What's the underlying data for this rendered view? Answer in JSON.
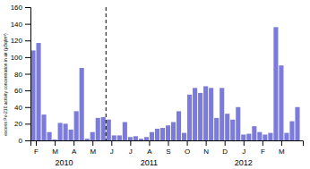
{
  "chart_data": {
    "type": "bar",
    "y_label": "excess Po-210 activity concentration in air (µBq/m³)",
    "color": "#7b7bdd",
    "x": [
      -0.5,
      0.5,
      1.5,
      2.5,
      3.5,
      4.5,
      5.5,
      6.5,
      7.5,
      8.5,
      9.5,
      10.5,
      11.5,
      12.5,
      13.5,
      14.5,
      15.5,
      16.5,
      17.5,
      18.5,
      19.5,
      20.5,
      21.5,
      22.5,
      23.5,
      24.5,
      25.5,
      26.5,
      27.5,
      28.5,
      29.5,
      30.5,
      31.5,
      32.5,
      33.5,
      34.5,
      35.5,
      36.5,
      37.5,
      38.5,
      39.5,
      40.5,
      41.5,
      42.5,
      43.5,
      44.5,
      45.5,
      46.5,
      47.5,
      48.5
    ],
    "values": [
      108,
      117,
      31,
      10,
      1,
      21,
      20,
      13,
      35,
      87,
      2,
      10,
      27,
      28,
      25,
      6,
      6,
      22,
      4,
      5,
      2,
      4,
      10,
      14,
      15,
      18,
      22,
      35,
      9,
      55,
      63,
      57,
      65,
      63,
      27,
      63,
      32,
      25,
      40,
      7,
      8,
      17,
      10,
      7,
      9,
      136,
      90,
      9,
      23,
      40
    ],
    "xlim": [
      -1,
      49.5
    ],
    "xticks": [
      {
        "value": 0,
        "label": "F"
      },
      {
        "value": 3.5,
        "label": "M"
      },
      {
        "value": 7,
        "label": "A"
      },
      {
        "value": 10.5,
        "label": "M"
      },
      {
        "value": 14,
        "label": "J"
      },
      {
        "value": 17.5,
        "label": "J"
      },
      {
        "value": 21,
        "label": "A"
      },
      {
        "value": 24.5,
        "label": "S"
      },
      {
        "value": 28,
        "label": "O"
      },
      {
        "value": 31.5,
        "label": "N"
      },
      {
        "value": 35,
        "label": "D"
      },
      {
        "value": 38.5,
        "label": "J"
      },
      {
        "value": 42,
        "label": "F"
      },
      {
        "value": 45.5,
        "label": "M"
      }
    ],
    "ylim": [
      0,
      160
    ],
    "yticks": [
      0,
      20,
      40,
      60,
      80,
      100,
      120,
      140,
      160
    ],
    "vlines": [
      {
        "x": 13,
        "line_style": "dashed"
      }
    ],
    "annotations": [
      {
        "text": "2010",
        "x": 5.25
      },
      {
        "text": "2011",
        "x": 21.0
      },
      {
        "text": "2012",
        "x": 38.5
      }
    ],
    "grid": false
  }
}
